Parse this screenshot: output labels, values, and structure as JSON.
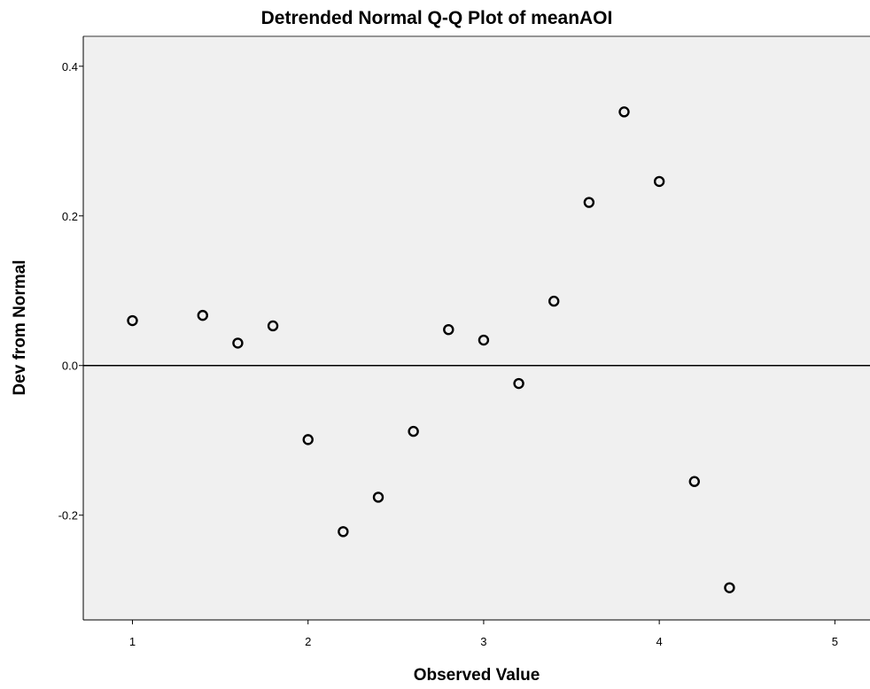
{
  "chart_data": {
    "type": "scatter",
    "title": "Detrended Normal Q-Q Plot of meanAOI",
    "xlabel": "Observed Value",
    "ylabel": "Dev from Normal",
    "xlim": [
      0.72,
      5.2
    ],
    "ylim": [
      -0.34,
      0.44
    ],
    "x_ticks": [
      1,
      2,
      3,
      4,
      5
    ],
    "x_tick_labels": [
      "1",
      "2",
      "3",
      "4",
      "5"
    ],
    "y_ticks": [
      -0.2,
      0.0,
      0.2,
      0.4
    ],
    "y_tick_labels": [
      "-0.2",
      "0.0",
      "0.2",
      "0.4"
    ],
    "reference_line_y": 0.0,
    "grid": false,
    "legend": "none",
    "colors": {
      "plot_background": "#f0f0f0",
      "marker": "#000000",
      "reference_line": "#000000"
    },
    "points": [
      {
        "x": 1.0,
        "y": 0.06
      },
      {
        "x": 1.4,
        "y": 0.067
      },
      {
        "x": 1.6,
        "y": 0.03
      },
      {
        "x": 1.8,
        "y": 0.053
      },
      {
        "x": 2.0,
        "y": -0.099
      },
      {
        "x": 2.2,
        "y": -0.222
      },
      {
        "x": 2.4,
        "y": -0.176
      },
      {
        "x": 2.6,
        "y": -0.088
      },
      {
        "x": 2.8,
        "y": 0.048
      },
      {
        "x": 3.0,
        "y": 0.034
      },
      {
        "x": 3.2,
        "y": -0.024
      },
      {
        "x": 3.4,
        "y": 0.086
      },
      {
        "x": 3.6,
        "y": 0.218
      },
      {
        "x": 3.8,
        "y": 0.339
      },
      {
        "x": 4.0,
        "y": 0.246
      },
      {
        "x": 4.2,
        "y": -0.155
      },
      {
        "x": 4.4,
        "y": -0.297
      }
    ]
  }
}
